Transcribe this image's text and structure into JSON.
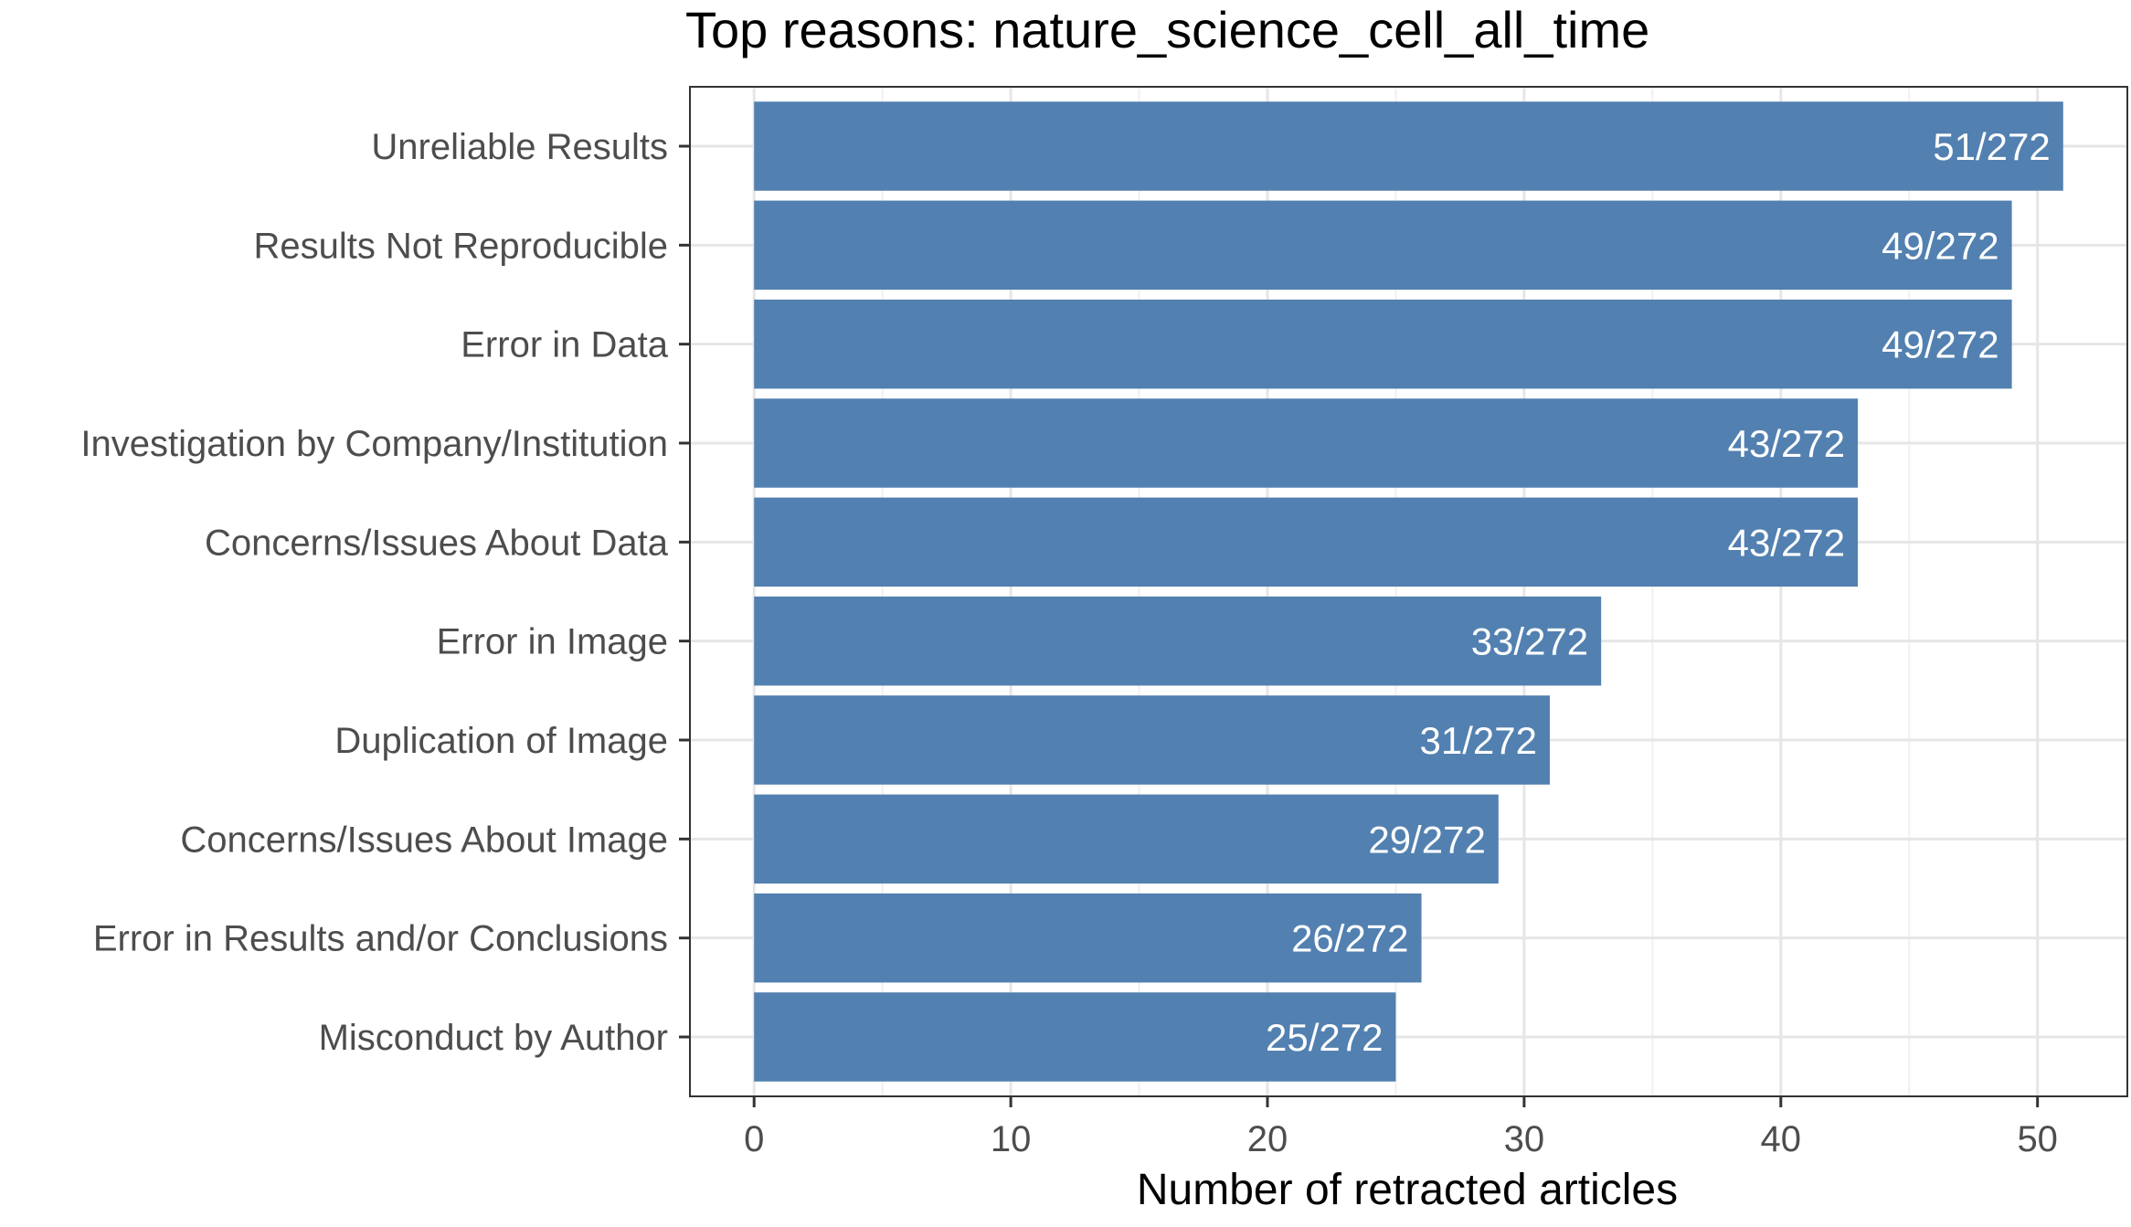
{
  "chart_data": {
    "type": "bar",
    "orientation": "horizontal",
    "title": "Top reasons: nature_science_cell_all_time",
    "xlabel": "Number of retracted articles",
    "ylabel": "",
    "xlim": [
      -2.5,
      53.5
    ],
    "x_ticks": [
      0,
      10,
      20,
      30,
      40,
      50
    ],
    "grid": true,
    "legend": "none",
    "bar_color": "#5280b0",
    "total": 272,
    "categories": [
      "Unreliable Results",
      "Results Not Reproducible",
      "Error in Data",
      "Investigation by Company/Institution",
      "Concerns/Issues About Data",
      "Error in Image",
      "Duplication of Image",
      "Concerns/Issues About Image",
      "Error in Results and/or Conclusions",
      "Misconduct by Author"
    ],
    "values": [
      51,
      49,
      49,
      43,
      43,
      33,
      31,
      29,
      26,
      25
    ],
    "data_labels": [
      "51/272",
      "49/272",
      "49/272",
      "43/272",
      "43/272",
      "33/272",
      "31/272",
      "29/272",
      "26/272",
      "25/272"
    ]
  }
}
